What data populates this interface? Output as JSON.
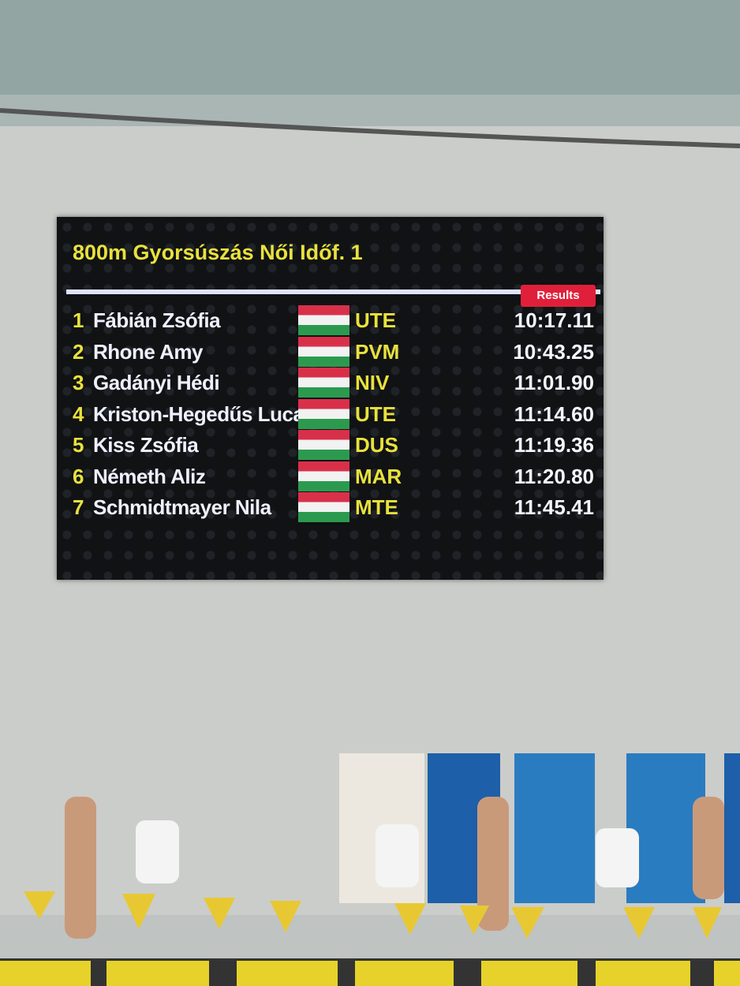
{
  "scoreboard": {
    "title": "800m Gyorsúszás Női Időf. 1",
    "badge": "Results",
    "results": [
      {
        "rank": 1,
        "name": "Fábián Zsófia",
        "club": "UTE",
        "time": "10:17.11"
      },
      {
        "rank": 2,
        "name": "Rhone Amy",
        "club": "PVM",
        "time": "10:43.25"
      },
      {
        "rank": 3,
        "name": "Gadányi Hédi",
        "club": "NIV",
        "time": "11:01.90"
      },
      {
        "rank": 4,
        "name": "Kriston-Hegedűs Luca",
        "club": "UTE",
        "time": "11:14.60"
      },
      {
        "rank": 5,
        "name": "Kiss Zsófia",
        "club": "DUS",
        "time": "11:19.36"
      },
      {
        "rank": 6,
        "name": "Németh Aliz",
        "club": "MAR",
        "time": "11:20.80"
      },
      {
        "rank": 7,
        "name": "Schmidtmayer Nila",
        "club": "MTE",
        "time": "11:45.41"
      }
    ]
  }
}
